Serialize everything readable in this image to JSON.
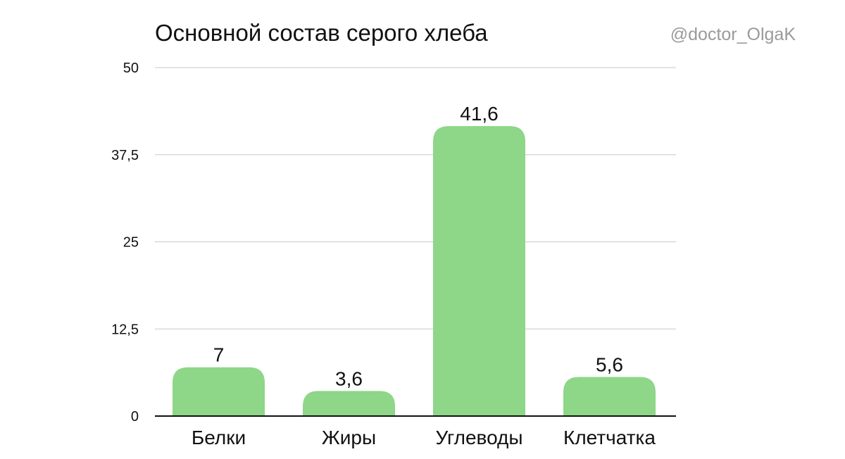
{
  "watermark": "@doctor_OlgaK",
  "chart_data": {
    "type": "bar",
    "title": "Основной состав серого хлеба",
    "categories": [
      "Белки",
      "Жиры",
      "Углеводы",
      "Клетчатка"
    ],
    "values": [
      7,
      3.6,
      41.6,
      5.6
    ],
    "value_labels": [
      "7",
      "3,6",
      "41,6",
      "5,6"
    ],
    "y_ticks": [
      0,
      12.5,
      25,
      37.5,
      50
    ],
    "y_tick_labels": [
      "0",
      "12,5",
      "25",
      "37,5",
      "50"
    ],
    "xlabel": "",
    "ylabel": "",
    "ylim": [
      0,
      50
    ],
    "grid": true,
    "legend": "none",
    "bar_color": "#8ed688"
  }
}
